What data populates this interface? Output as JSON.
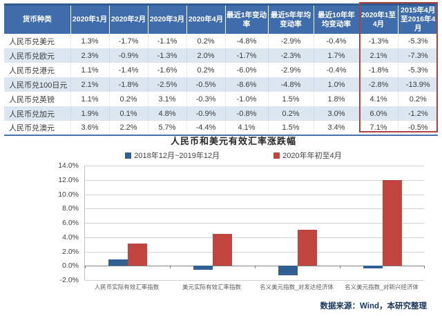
{
  "table": {
    "headers": [
      "货币种类",
      "2020年1月",
      "2020年2月",
      "2020年3月",
      "2020年4月",
      "最近1年变动率",
      "最近5年年均变动率",
      "最近10年年均变动率",
      "2020年1至4月",
      "2015年4月至2016年4月"
    ],
    "rows": [
      {
        "label": "人民币兑美元",
        "values": [
          "1.3%",
          "-1.7%",
          "-1.1%",
          "0.2%",
          "-4.8%",
          "-2.9%",
          "-0.4%",
          "-1.3%",
          "-5.3%"
        ]
      },
      {
        "label": "人民币兑欧元",
        "values": [
          "2.3%",
          "-0.9%",
          "-1.3%",
          "2.0%",
          "-1.7%",
          "-2.3%",
          "1.7%",
          "2.1%",
          "-7.3%"
        ]
      },
      {
        "label": "人民币兑港元",
        "values": [
          "1.1%",
          "-1.4%",
          "-1.6%",
          "0.2%",
          "-6.0%",
          "-2.9%",
          "-0.4%",
          "-1.8%",
          "-5.3%"
        ]
      },
      {
        "label": "人民币兑100日元",
        "values": [
          "2.1%",
          "-1.8%",
          "-2.5%",
          "-0.5%",
          "-8.6%",
          "-4.8%",
          "1.0%",
          "-2.8%",
          "-13.9%"
        ]
      },
      {
        "label": "人民币兑英镑",
        "values": [
          "1.1%",
          "0.2%",
          "3.1%",
          "-0.3%",
          "-1.0%",
          "1.5%",
          "1.8%",
          "4.1%",
          "0.2%"
        ]
      },
      {
        "label": "人民币兑加元",
        "values": [
          "1.9%",
          "0.1%",
          "4.8%",
          "-0.9%",
          "-0.8%",
          "0.2%",
          "3.0%",
          "6.0%",
          "-1.2%"
        ]
      },
      {
        "label": "人民币兑澳元",
        "values": [
          "3.6%",
          "2.2%",
          "5.7%",
          "-4.4%",
          "4.1%",
          "1.5%",
          "3.4%",
          "7.1%",
          "-0.5%"
        ]
      }
    ],
    "highlighted_columns": [
      "2020年1至4月",
      "2015年4月至2016年4月"
    ],
    "highlight_box_color": "#af403c",
    "header_bg_color": "#3f6cab",
    "alt_row_color": "#dce6f1"
  },
  "chart_data": {
    "type": "bar",
    "title": "人民币和美元有效汇率涨跌幅",
    "categories": [
      "人民币实际有效汇率指数",
      "美元实际有效汇率指数",
      "名义美元指数_对发达经济体",
      "名义美元指数_对新兴经济体"
    ],
    "series": [
      {
        "name": "2018年12月~2019年12月",
        "color": "#305f91",
        "values": [
          0.9,
          -0.6,
          -1.3,
          -0.4
        ]
      },
      {
        "name": "2020年年初至4月",
        "color": "#c1453f",
        "values": [
          3.1,
          4.5,
          5.0,
          12.0
        ]
      }
    ],
    "ylim": [
      -2,
      14
    ],
    "ytick_step": 2,
    "ytick_labels": [
      "14.0%",
      "12.0%",
      "10.0%",
      "8.0%",
      "6.0%",
      "4.0%",
      "2.0%",
      "0.0%",
      "-2.0%"
    ],
    "grid": true,
    "legend_position": "top"
  },
  "source_note": "数据来源：Wind，本研究整理"
}
